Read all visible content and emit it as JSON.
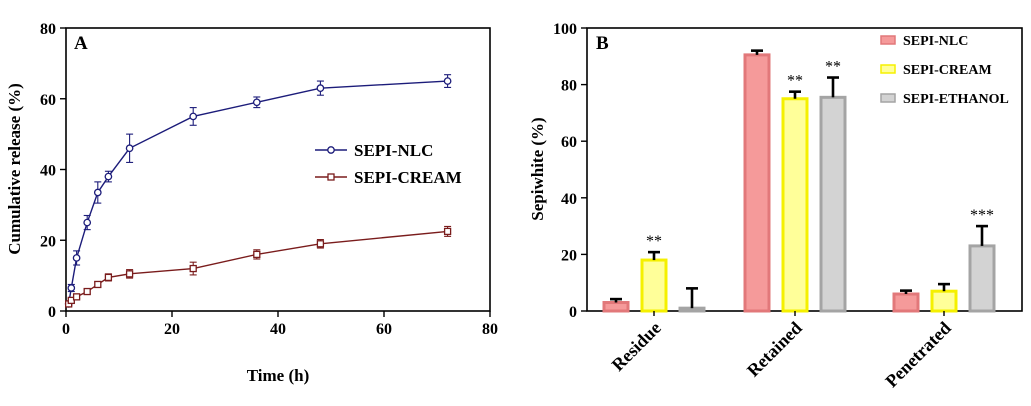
{
  "chart_data": [
    {
      "panel": "A",
      "type": "line",
      "xlabel": "Time (h)",
      "ylabel": "Cumulative release (%)",
      "xlim": [
        0,
        80
      ],
      "ylim": [
        0,
        80
      ],
      "xticks": [
        "0",
        "20",
        "40",
        "60",
        "80"
      ],
      "yticks": [
        "0",
        "20",
        "40",
        "60",
        "80"
      ],
      "grid": false,
      "legend": "right",
      "x": [
        0.5,
        1,
        2,
        4,
        6,
        8,
        12,
        24,
        36,
        48,
        72
      ],
      "series": [
        {
          "name": "SEPI-NLC",
          "color": "#1c1c7a",
          "marker": "circle",
          "values": [
            2,
            6.5,
            15,
            25,
            33.5,
            38,
            46,
            55,
            59,
            63,
            65
          ],
          "errors": [
            0.5,
            1,
            2,
            2,
            3,
            1.5,
            4,
            2.5,
            1.5,
            2,
            1.8
          ]
        },
        {
          "name": "SEPI-CREAM",
          "color": "#7a1c1c",
          "marker": "square",
          "values": [
            2,
            3,
            4,
            5.5,
            7.5,
            9.5,
            10.5,
            12,
            16,
            19,
            22.5
          ],
          "errors": [
            0.5,
            0.5,
            0.5,
            0.7,
            0.8,
            1,
            1.2,
            1.8,
            1.3,
            1.2,
            1.4
          ]
        }
      ]
    },
    {
      "panel": "B",
      "type": "bar",
      "xlabel": "",
      "ylabel": "Sepiwhite (%)",
      "ylim": [
        0,
        100
      ],
      "yticks": [
        "0",
        "20",
        "40",
        "60",
        "80",
        "100"
      ],
      "grid": false,
      "legend": "top-right",
      "categories": [
        "Residue",
        "Retained",
        "Penetrated"
      ],
      "series": [
        {
          "name": "SEPI-NLC",
          "fill": "#f59a9a",
          "edge": "#e2787a",
          "values": [
            3,
            90.5,
            6
          ],
          "errors": [
            1.2,
            1.5,
            1.2
          ],
          "stars": [
            "",
            "",
            ""
          ]
        },
        {
          "name": "SEPI-CREAM",
          "fill": "#ffff99",
          "edge": "#f5f000",
          "values": [
            18,
            75,
            7
          ],
          "errors": [
            2.8,
            2.5,
            2.5
          ],
          "stars": [
            "**",
            "**",
            ""
          ]
        },
        {
          "name": "SEPI-ETHANOL",
          "fill": "#d3d3d3",
          "edge": "#a4a4a4",
          "values": [
            1,
            75.5,
            23
          ],
          "errors": [
            7,
            7,
            7
          ],
          "stars": [
            "",
            "**",
            "***"
          ]
        }
      ]
    }
  ]
}
